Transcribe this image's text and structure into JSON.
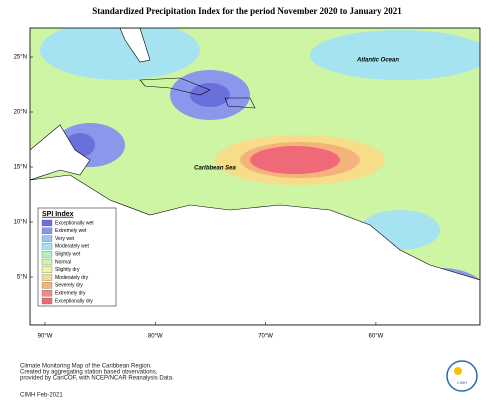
{
  "title": "Standardized Precipitation Index for the period November 2020 to January 2021",
  "lat_ticks": [
    "25°N",
    "20°N",
    "15°N",
    "10°N",
    "5°N"
  ],
  "lon_ticks": [
    "90°W",
    "80°W",
    "70°W",
    "60°W"
  ],
  "labels": {
    "atlantic": "Atlantic Ocean",
    "caribbean": "Caribbean Sea"
  },
  "legend": {
    "title": "SPI Index",
    "items": [
      {
        "name": "Exceptionally wet",
        "color": "#6a6fdc"
      },
      {
        "name": "Extremely wet",
        "color": "#8a97ea"
      },
      {
        "name": "Very wet",
        "color": "#9fc4f2"
      },
      {
        "name": "Moderately wet",
        "color": "#a6e3f0"
      },
      {
        "name": "Slightly wet",
        "color": "#b4f0c8"
      },
      {
        "name": "Normal",
        "color": "#cdf5a3"
      },
      {
        "name": "Slightly dry",
        "color": "#f1f3a0"
      },
      {
        "name": "Moderately dry",
        "color": "#f7dc8a"
      },
      {
        "name": "Severely dry",
        "color": "#f5b27a"
      },
      {
        "name": "Extremely dry",
        "color": "#f28a7c"
      },
      {
        "name": "Exceptionally dry",
        "color": "#ee6a78"
      }
    ]
  },
  "footer": {
    "lines": [
      "Climate Monitoring Map of the Caribbean Region.",
      "Created by aggregating station based observations,",
      "provided by CariCOF, with NCEP/NCAR Reanalysis Data."
    ],
    "credit": "CIMH Feb-2021",
    "logo": "CIMH"
  }
}
